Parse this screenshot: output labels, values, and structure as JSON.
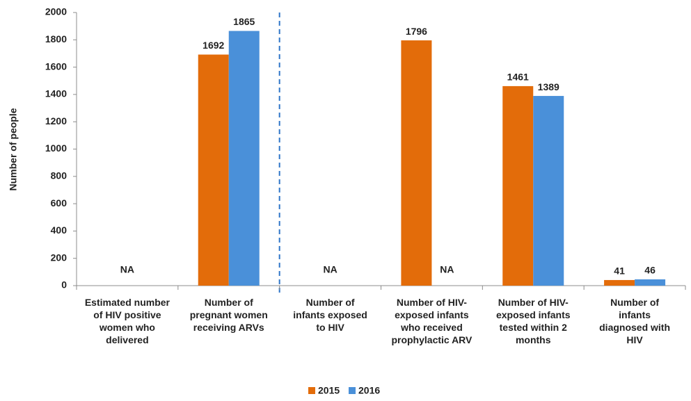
{
  "chart_data": {
    "type": "bar",
    "y_label": "Number of people",
    "categories": [
      "Estimated number of HIV positive women who delivered",
      "Number of pregnant women receiving ARVs",
      "Number of infants exposed to HIV",
      "Number of HIV-exposed infants who received prophylactic ARV",
      "Number of HIV-exposed infants tested within 2 months",
      "Number of infants diagnosed with HIV"
    ],
    "series": [
      {
        "name": "2015",
        "color": "#e36c0a",
        "values": [
          null,
          1692,
          null,
          1796,
          1461,
          41
        ],
        "value_labels": [
          "NA",
          "1692",
          "NA",
          "1796",
          "1461",
          "41"
        ]
      },
      {
        "name": "2016",
        "color": "#4a90d9",
        "values": [
          null,
          1865,
          null,
          null,
          1389,
          46
        ],
        "value_labels": [
          null,
          "1865",
          null,
          "NA",
          "1389",
          "46"
        ]
      }
    ],
    "ylim": [
      0,
      2000
    ],
    "yticks": [
      0,
      200,
      400,
      600,
      800,
      1000,
      1200,
      1400,
      1600,
      1800,
      2000
    ],
    "legend": "bottom"
  }
}
